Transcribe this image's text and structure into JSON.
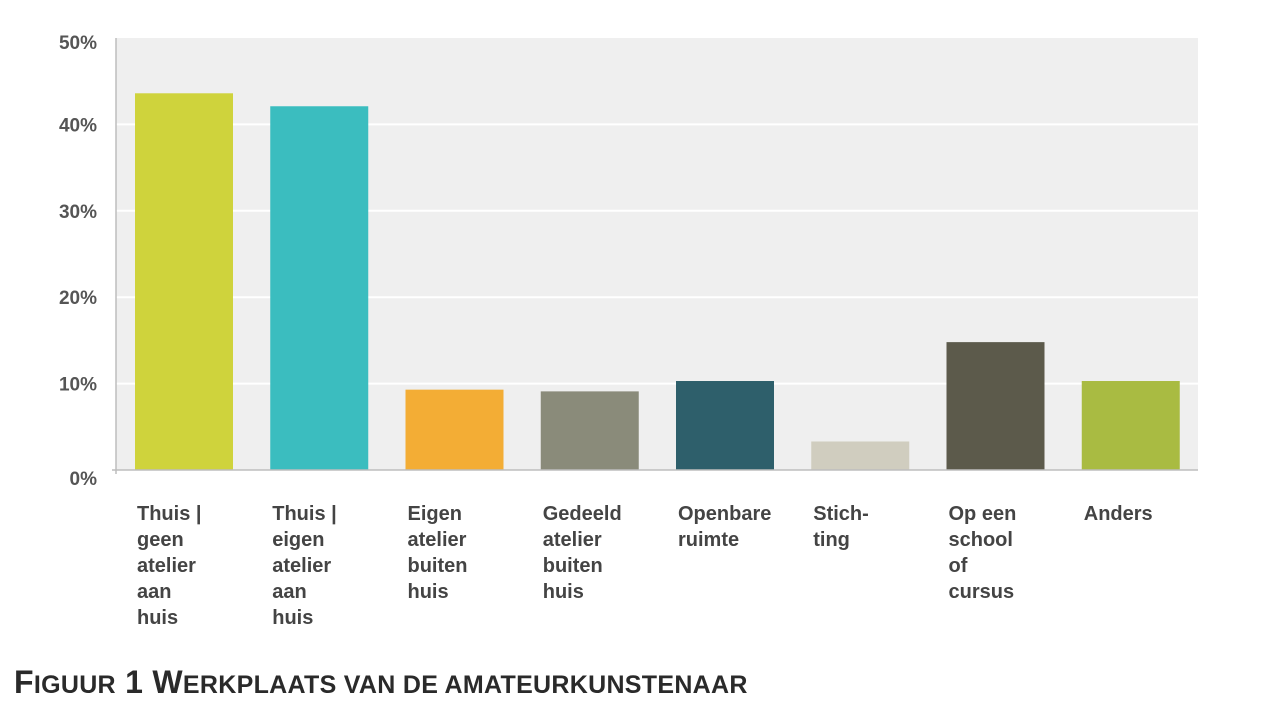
{
  "chart_data": {
    "type": "bar",
    "categories": [
      "Thuis | geen atelier aan huis",
      "Thuis | eigen atelier aan huis",
      "Eigen atelier buiten huis",
      "Gedeeld atelier buiten huis",
      "Openbare ruimte",
      "Stich- ting",
      "Op een school of cursus",
      "Anders"
    ],
    "category_lines": [
      [
        "Thuis |",
        "geen",
        "atelier",
        "aan",
        "huis"
      ],
      [
        "Thuis |",
        "eigen",
        "atelier",
        "aan",
        "huis"
      ],
      [
        "Eigen",
        "atelier",
        "buiten",
        "huis"
      ],
      [
        "Gedeeld",
        "atelier",
        "buiten",
        "huis"
      ],
      [
        "Openbare",
        "ruimte"
      ],
      [
        "Stich-",
        "ting"
      ],
      [
        "Op een",
        "school",
        "of",
        "cursus"
      ],
      [
        "Anders"
      ]
    ],
    "values": [
      43.6,
      42.1,
      9.3,
      9.1,
      10.3,
      3.3,
      14.8,
      10.3
    ],
    "colors": [
      "#cfd33c",
      "#3bbdbf",
      "#f3ad35",
      "#8a8b7a",
      "#2e5f6b",
      "#d0cdbf",
      "#5c5a4b",
      "#a9bb42"
    ],
    "ylim": [
      0,
      50
    ],
    "yticks": [
      "0%",
      "10%",
      "20%",
      "30%",
      "40%",
      "50%"
    ],
    "ytick_values": [
      0,
      10,
      20,
      30,
      40,
      50
    ],
    "grid": true,
    "plot_background": "#efefef",
    "title": "Figuur 1 Werkplaats van de amateurkunstenaar",
    "xlabel": "",
    "ylabel": ""
  },
  "caption": {
    "parts": [
      {
        "text": "F",
        "small": false
      },
      {
        "text": "IGUUR",
        "small": true
      },
      {
        "text": " 1 ",
        "small": false
      },
      {
        "text": "W",
        "small": false
      },
      {
        "text": "ERKPLAATS VAN DE AMATEURKUNSTENAAR",
        "small": true
      }
    ]
  }
}
